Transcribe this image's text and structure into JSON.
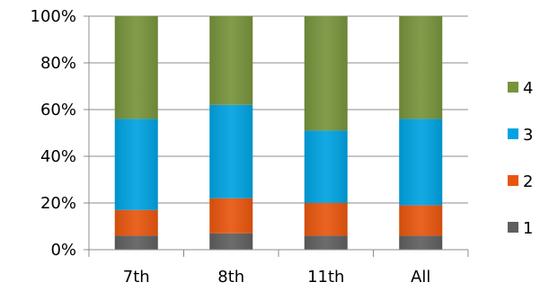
{
  "chart_data": {
    "type": "bar",
    "stacked": true,
    "categories": [
      "7th",
      "8th",
      "11th",
      "All"
    ],
    "series": [
      {
        "name": "1",
        "color": "#5f5f5f",
        "values": [
          6,
          7,
          6,
          6
        ]
      },
      {
        "name": "2",
        "color": "#e8560e",
        "values": [
          11,
          15,
          14,
          13
        ]
      },
      {
        "name": "3",
        "color": "#00a2e1",
        "values": [
          39,
          40,
          31,
          37
        ]
      },
      {
        "name": "4",
        "color": "#77933c",
        "values": [
          44,
          38,
          49,
          44
        ]
      }
    ],
    "y_ticks": [
      "0%",
      "20%",
      "40%",
      "60%",
      "80%",
      "100%"
    ],
    "ylim": [
      0,
      100
    ],
    "grid": true,
    "legend_position": "right"
  }
}
